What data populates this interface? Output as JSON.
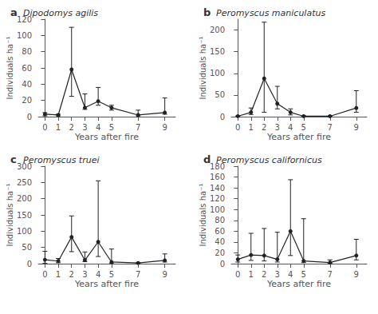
{
  "chart_data": [
    {
      "type": "line",
      "title": "a",
      "subtitle": "Dipodomys agilis",
      "x": [
        0,
        1,
        2,
        3,
        4,
        5,
        7,
        9
      ],
      "values": [
        3,
        2,
        58,
        11,
        19,
        11,
        2,
        5
      ],
      "yerr_low": [
        2,
        1,
        33,
        2,
        5,
        3,
        1,
        2
      ],
      "yerr_high": [
        2,
        1,
        52,
        17,
        17,
        3,
        6,
        18
      ],
      "xlabel": "Years after fire",
      "ylabel": "Individuals ha⁻¹",
      "xlim": [
        -0.5,
        9.8
      ],
      "xticks": [
        0,
        1,
        2,
        3,
        4,
        5,
        7,
        9
      ],
      "ylim": [
        0,
        120
      ],
      "yticks": [
        0,
        20,
        40,
        60,
        80,
        100,
        120
      ],
      "color": "#222222",
      "marker": "circle",
      "grid": false
    },
    {
      "type": "line",
      "title": "b",
      "subtitle": "Peromyscus maniculatus",
      "x": [
        0,
        1,
        2,
        3,
        4,
        5,
        7,
        9
      ],
      "values": [
        1,
        10,
        88,
        30,
        10,
        1,
        1,
        20
      ],
      "yerr_low": [
        1,
        5,
        78,
        12,
        6,
        1,
        1,
        10
      ],
      "yerr_high": [
        1,
        10,
        130,
        40,
        8,
        1,
        1,
        40
      ],
      "xlabel": "Years after fire",
      "ylabel": "Individuals ha⁻¹",
      "xlim": [
        -0.5,
        9.8
      ],
      "xticks": [
        0,
        1,
        2,
        3,
        4,
        5,
        7,
        9
      ],
      "ylim": [
        0,
        225
      ],
      "yticks": [
        0,
        50,
        100,
        150,
        200
      ],
      "color": "#222222",
      "marker": "circle",
      "grid": false
    },
    {
      "type": "line",
      "title": "c",
      "subtitle": "Peromyscus truei",
      "x": [
        0,
        1,
        2,
        3,
        4,
        5,
        7,
        9
      ],
      "values": [
        12,
        8,
        82,
        11,
        67,
        5,
        2,
        10
      ],
      "yerr_low": [
        11,
        5,
        45,
        5,
        45,
        3,
        1,
        5
      ],
      "yerr_high": [
        26,
        8,
        65,
        25,
        188,
        40,
        1,
        20
      ],
      "xlabel": "Years after fire",
      "ylabel": "Individuals ha⁻¹",
      "xlim": [
        -0.5,
        9.8
      ],
      "xticks": [
        0,
        1,
        2,
        3,
        4,
        5,
        7,
        9
      ],
      "ylim": [
        0,
        300
      ],
      "yticks": [
        0,
        50,
        100,
        150,
        200,
        250,
        300
      ],
      "color": "#222222",
      "marker": "circle",
      "grid": false
    },
    {
      "type": "line",
      "title": "d",
      "subtitle": "Peromyscus californicus",
      "x": [
        0,
        1,
        2,
        3,
        4,
        5,
        7,
        9
      ],
      "values": [
        8,
        16,
        15,
        8,
        60,
        5,
        2,
        15
      ],
      "yerr_low": [
        5,
        10,
        10,
        5,
        45,
        3,
        1,
        8
      ],
      "yerr_high": [
        8,
        40,
        50,
        50,
        95,
        78,
        5,
        30
      ],
      "xlabel": "Years after fire",
      "ylabel": "Individuals ha⁻¹",
      "xlim": [
        -0.5,
        9.8
      ],
      "xticks": [
        0,
        1,
        2,
        3,
        4,
        5,
        7,
        9
      ],
      "ylim": [
        0,
        180
      ],
      "yticks": [
        0,
        20,
        40,
        60,
        80,
        100,
        120,
        140,
        160,
        180
      ],
      "color": "#222222",
      "marker": "circle",
      "grid": false
    }
  ]
}
